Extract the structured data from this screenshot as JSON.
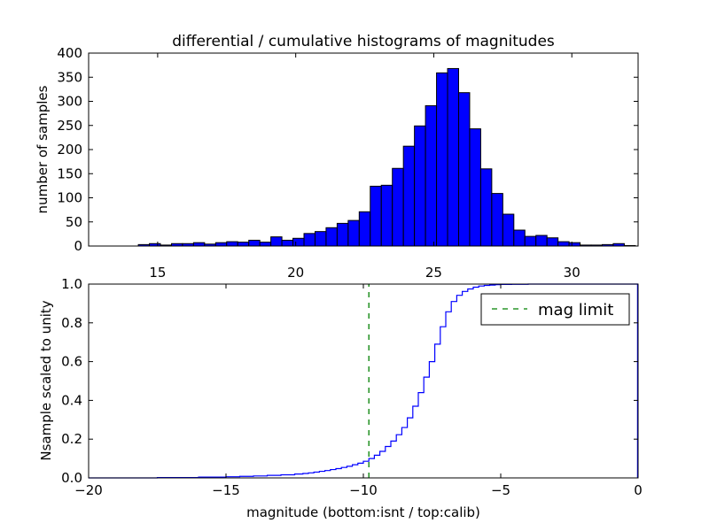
{
  "chart_data": [
    {
      "type": "bar",
      "title": "differential / cumulative histograms of magnitudes",
      "xlabel": "",
      "ylabel": "number of samples",
      "xlim": [
        12.5,
        32.4
      ],
      "ylim": [
        0,
        400
      ],
      "xticks": [
        "15",
        "20",
        "25",
        "30"
      ],
      "yticks": [
        "0",
        "50",
        "100",
        "150",
        "200",
        "250",
        "300",
        "350",
        "400"
      ],
      "bin_width": 0.4,
      "bin_starts": [
        14.3,
        14.7,
        15.1,
        15.5,
        15.9,
        16.3,
        16.7,
        17.1,
        17.5,
        17.9,
        18.3,
        18.7,
        19.1,
        19.5,
        19.9,
        20.3,
        20.7,
        21.1,
        21.5,
        21.9,
        22.3,
        22.7,
        23.1,
        23.5,
        23.9,
        24.3,
        24.7,
        25.1,
        25.5,
        25.9,
        26.3,
        26.7,
        27.1,
        27.5,
        27.9,
        28.3,
        28.7,
        29.1,
        29.5,
        29.9,
        30.3,
        30.7,
        31.1,
        31.5,
        31.9
      ],
      "values": [
        3,
        5,
        2,
        5,
        5,
        7,
        4,
        7,
        9,
        8,
        12,
        8,
        19,
        12,
        16,
        26,
        30,
        38,
        47,
        53,
        71,
        124,
        126,
        161,
        207,
        249,
        291,
        359,
        368,
        318,
        243,
        160,
        109,
        66,
        33,
        20,
        22,
        17,
        9,
        7,
        2,
        2,
        3,
        5,
        1
      ],
      "bar_color": "#0000ff",
      "grid": false
    },
    {
      "type": "line",
      "step": true,
      "xlabel": "magnitude (bottom:isnt / top:calib)",
      "ylabel": "Nsample scaled to unity",
      "xlim": [
        -20,
        0
      ],
      "ylim": [
        0,
        1.0
      ],
      "xticks": [
        "−20",
        "−15",
        "−10",
        "−5",
        "0"
      ],
      "yticks": [
        "0.0",
        "0.2",
        "0.4",
        "0.6",
        "0.8",
        "1.0"
      ],
      "series": [
        {
          "line_color": "#0000ff",
          "x": [
            -20,
            -17.5,
            -16,
            -15,
            -14.5,
            -14,
            -13.5,
            -13,
            -12.5,
            -12.2,
            -12,
            -11.8,
            -11.6,
            -11.4,
            -11.2,
            -11,
            -10.8,
            -10.6,
            -10.4,
            -10.2,
            -10,
            -9.8,
            -9.6,
            -9.4,
            -9.2,
            -9,
            -8.8,
            -8.6,
            -8.4,
            -8.2,
            -8,
            -7.8,
            -7.6,
            -7.4,
            -7.2,
            -7,
            -6.8,
            -6.6,
            -6.4,
            -6.2,
            -6,
            -5.8,
            -5.6,
            -5.4,
            -5.2,
            -5,
            -4.6,
            -4,
            -0.05
          ],
          "y": [
            0,
            0.002,
            0.004,
            0.006,
            0.008,
            0.01,
            0.013,
            0.016,
            0.02,
            0.023,
            0.026,
            0.03,
            0.034,
            0.038,
            0.043,
            0.048,
            0.054,
            0.06,
            0.068,
            0.076,
            0.086,
            0.1,
            0.117,
            0.137,
            0.162,
            0.19,
            0.223,
            0.26,
            0.31,
            0.37,
            0.44,
            0.52,
            0.6,
            0.69,
            0.78,
            0.857,
            0.91,
            0.942,
            0.962,
            0.975,
            0.984,
            0.99,
            0.993,
            0.995,
            0.997,
            0.998,
            0.999,
            1.0,
            1.0
          ]
        },
        {
          "name": "mag limit",
          "line_color": "#008000",
          "dashed": true,
          "x": [
            -9.8,
            -9.8
          ],
          "y": [
            0,
            1.0
          ]
        }
      ],
      "legend_location": "top-right",
      "grid": false
    }
  ]
}
